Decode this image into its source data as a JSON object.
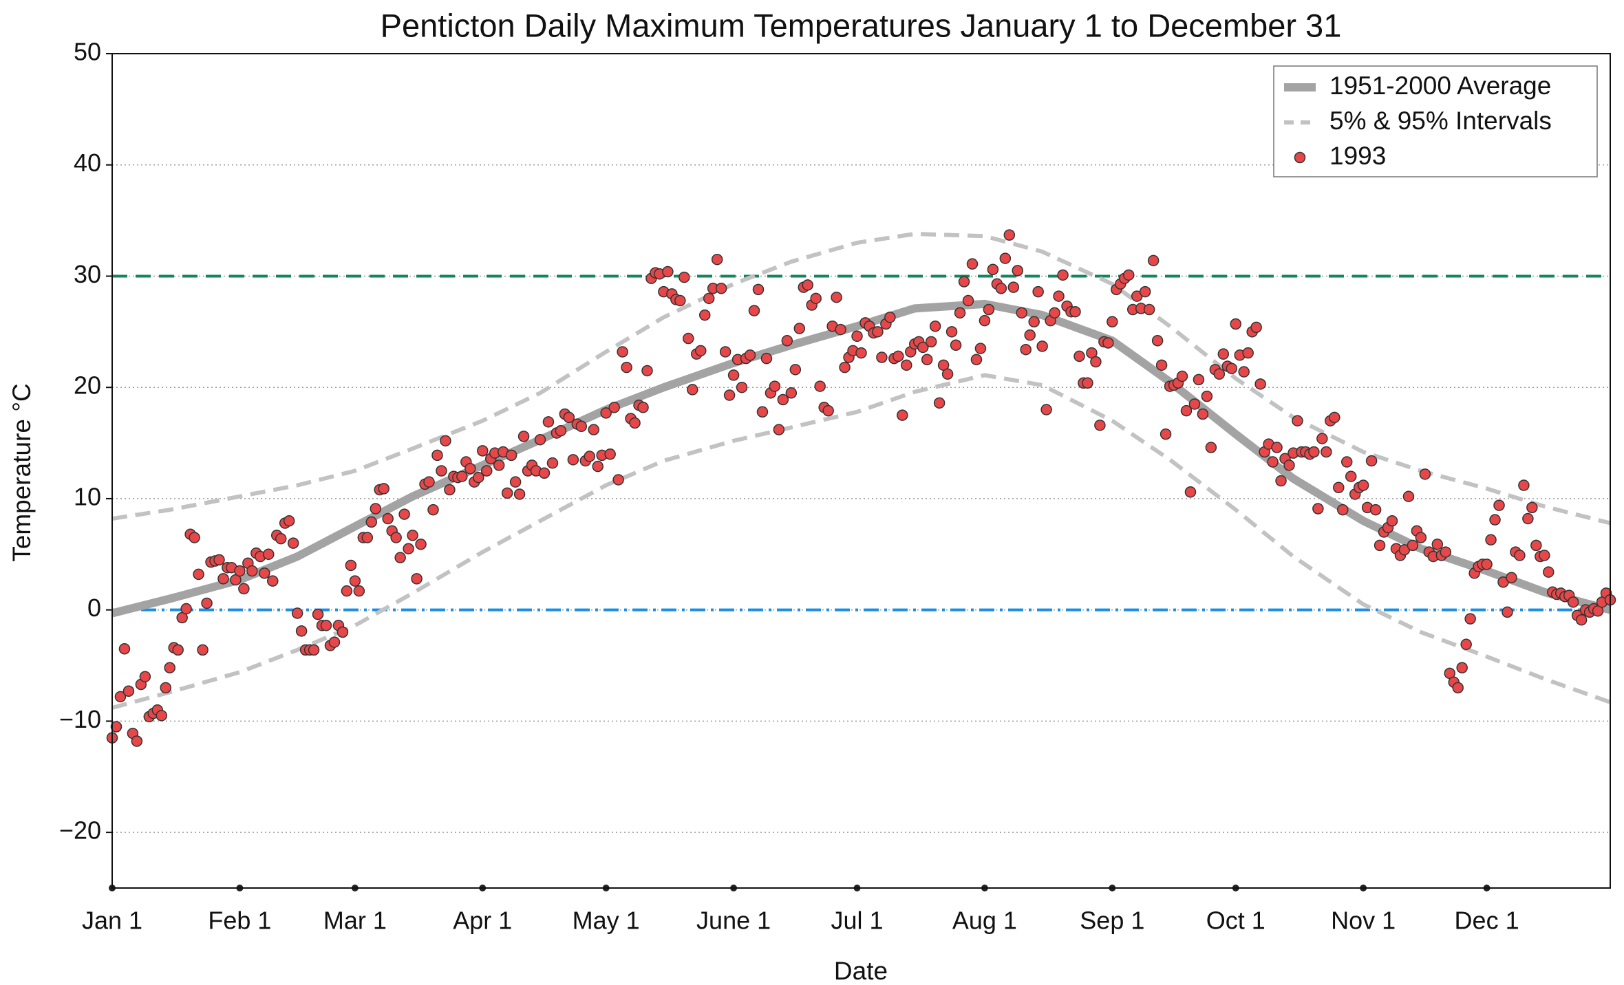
{
  "chart_data": {
    "type": "line",
    "title": "Penticton Daily Maximum Temperatures January 1 to December 31",
    "x_label": "Date",
    "y_label": "Temperature °C",
    "xlim": [
      1,
      365
    ],
    "ylim": [
      -25,
      50
    ],
    "xticks": [
      {
        "value": 1,
        "label": "Jan 1"
      },
      {
        "value": 32,
        "label": "Feb 1"
      },
      {
        "value": 60,
        "label": "Mar 1"
      },
      {
        "value": 91,
        "label": "Apr 1"
      },
      {
        "value": 121,
        "label": "May 1"
      },
      {
        "value": 152,
        "label": "June 1"
      },
      {
        "value": 182,
        "label": "Jul 1"
      },
      {
        "value": 213,
        "label": "Aug 1"
      },
      {
        "value": 244,
        "label": "Sep 1"
      },
      {
        "value": 274,
        "label": "Oct 1"
      },
      {
        "value": 305,
        "label": "Nov 1"
      },
      {
        "value": 335,
        "label": "Dec 1"
      }
    ],
    "yticks": [
      {
        "value": -20,
        "label": "−20"
      },
      {
        "value": -10,
        "label": "−10"
      },
      0,
      10,
      20,
      30,
      40,
      50
    ],
    "grid": true,
    "legend": "upper right",
    "hlines": [
      {
        "value": 30,
        "color": "#12885a",
        "style": "dashed"
      },
      {
        "value": 0,
        "color": "#1a8fe3",
        "style": "dashdot"
      }
    ],
    "series": [
      {
        "name": "1951-2000 Average",
        "type": "line",
        "color": "#a3a3a3",
        "style": "solid",
        "x": [
          1,
          15,
          32,
          46,
          60,
          74,
          91,
          105,
          121,
          135,
          152,
          166,
          182,
          196,
          213,
          227,
          244,
          258,
          274,
          288,
          305,
          319,
          335,
          349,
          365
        ],
        "values": [
          -0.3,
          1.0,
          2.7,
          4.8,
          7.5,
          10.2,
          13.0,
          15.3,
          18.0,
          20.0,
          22.2,
          23.8,
          25.5,
          27.1,
          27.5,
          26.5,
          24.2,
          20.5,
          15.8,
          11.8,
          8.0,
          5.5,
          3.5,
          1.6,
          0.0
        ]
      },
      {
        "name": "5% & 95% Intervals",
        "type": "line",
        "color": "#c2c2c2",
        "style": "dashed",
        "x": [
          1,
          15,
          32,
          46,
          60,
          74,
          91,
          105,
          121,
          135,
          152,
          166,
          182,
          196,
          213,
          227,
          244,
          258,
          274,
          288,
          305,
          319,
          335,
          349,
          365
        ],
        "values": [
          8.2,
          9.0,
          10.2,
          11.2,
          12.5,
          14.5,
          17.0,
          19.5,
          23.2,
          26.3,
          29.3,
          31.3,
          33.0,
          33.8,
          33.6,
          32.2,
          29.3,
          25.5,
          20.8,
          17.3,
          14.2,
          12.5,
          10.9,
          9.3,
          7.8
        ]
      },
      {
        "type": "line",
        "color": "#c2c2c2",
        "style": "dashed",
        "x": [
          1,
          15,
          32,
          46,
          60,
          74,
          91,
          105,
          121,
          135,
          152,
          166,
          182,
          196,
          213,
          227,
          244,
          258,
          274,
          288,
          305,
          319,
          335,
          349,
          365
        ],
        "values": [
          -8.8,
          -7.4,
          -5.6,
          -3.6,
          -1.4,
          1.5,
          5.2,
          8.0,
          11.2,
          13.4,
          15.2,
          16.4,
          17.8,
          19.6,
          21.1,
          20.2,
          17.0,
          13.5,
          9.0,
          4.8,
          0.5,
          -2.0,
          -4.2,
          -6.2,
          -8.3
        ]
      },
      {
        "name": "1993",
        "type": "scatter",
        "color": "#e8474a",
        "x": [
          1,
          2,
          3,
          4,
          5,
          6,
          7,
          8,
          9,
          10,
          11,
          12,
          13,
          14,
          15,
          16,
          17,
          18,
          19,
          20,
          21,
          22,
          23,
          24,
          25,
          26,
          27,
          28,
          29,
          30,
          31,
          32,
          33,
          34,
          35,
          36,
          37,
          38,
          39,
          40,
          41,
          42,
          43,
          44,
          45,
          46,
          47,
          48,
          49,
          50,
          51,
          52,
          53,
          54,
          55,
          56,
          57,
          58,
          59,
          60,
          61,
          62,
          63,
          64,
          65,
          66,
          67,
          68,
          69,
          70,
          71,
          72,
          73,
          74,
          75,
          76,
          77,
          78,
          79,
          80,
          81,
          82,
          83,
          84,
          85,
          86,
          87,
          88,
          89,
          90,
          91,
          92,
          93,
          94,
          95,
          96,
          97,
          98,
          99,
          100,
          101,
          102,
          103,
          104,
          105,
          106,
          107,
          108,
          109,
          110,
          111,
          112,
          113,
          114,
          115,
          116,
          117,
          118,
          119,
          120,
          121,
          122,
          123,
          124,
          125,
          126,
          127,
          128,
          129,
          130,
          131,
          132,
          133,
          134,
          135,
          136,
          137,
          138,
          139,
          140,
          141,
          142,
          143,
          144,
          145,
          146,
          147,
          148,
          149,
          150,
          151,
          152,
          153,
          154,
          155,
          156,
          157,
          158,
          159,
          160,
          161,
          162,
          163,
          164,
          165,
          166,
          167,
          168,
          169,
          170,
          171,
          172,
          173,
          174,
          175,
          176,
          177,
          178,
          179,
          180,
          181,
          182,
          183,
          184,
          185,
          186,
          187,
          188,
          189,
          190,
          191,
          192,
          193,
          194,
          195,
          196,
          197,
          198,
          199,
          200,
          201,
          202,
          203,
          204,
          205,
          206,
          207,
          208,
          209,
          210,
          211,
          212,
          213,
          214,
          215,
          216,
          217,
          218,
          219,
          220,
          221,
          222,
          223,
          224,
          225,
          226,
          227,
          228,
          229,
          230,
          231,
          232,
          233,
          234,
          235,
          236,
          237,
          238,
          239,
          240,
          241,
          242,
          243,
          244,
          245,
          246,
          247,
          248,
          249,
          250,
          251,
          252,
          253,
          254,
          255,
          256,
          257,
          258,
          259,
          260,
          261,
          262,
          263,
          264,
          265,
          266,
          267,
          268,
          269,
          270,
          271,
          272,
          273,
          274,
          275,
          276,
          277,
          278,
          279,
          280,
          281,
          282,
          283,
          284,
          285,
          286,
          287,
          288,
          289,
          290,
          291,
          292,
          293,
          294,
          295,
          296,
          297,
          298,
          299,
          300,
          301,
          302,
          303,
          304,
          305,
          306,
          307,
          308,
          309,
          310,
          311,
          312,
          313,
          314,
          315,
          316,
          317,
          318,
          319,
          320,
          321,
          322,
          323,
          324,
          325,
          326,
          327,
          328,
          329,
          330,
          331,
          332,
          333,
          334,
          335,
          336,
          337,
          338,
          339,
          340,
          341,
          342,
          343,
          344,
          345,
          346,
          347,
          348,
          349,
          350,
          351,
          352,
          353,
          354,
          355,
          356,
          357,
          358,
          359,
          360,
          361,
          362,
          363,
          364,
          365
        ],
        "values": [
          -11.5,
          -10.5,
          -7.8,
          -3.5,
          -7.3,
          -11.1,
          -11.8,
          -6.7,
          -6.0,
          -9.6,
          -9.3,
          -9.0,
          -9.5,
          -7.0,
          -5.2,
          -3.4,
          -3.6,
          -0.7,
          0.1,
          6.8,
          6.5,
          3.2,
          -3.6,
          0.6,
          4.3,
          4.4,
          4.5,
          2.8,
          3.8,
          3.8,
          2.7,
          3.5,
          1.9,
          4.2,
          3.5,
          5.1,
          4.8,
          3.3,
          5.0,
          2.6,
          6.7,
          6.4,
          7.8,
          8.0,
          6.0,
          -0.3,
          -1.9,
          -3.6,
          -3.6,
          -3.6,
          -0.4,
          -1.4,
          -1.4,
          -3.2,
          -2.9,
          -1.4,
          -2.0,
          1.7,
          4.0,
          2.6,
          1.7,
          6.5,
          6.5,
          7.9,
          9.1,
          10.8,
          10.9,
          8.2,
          7.1,
          6.5,
          4.7,
          8.6,
          5.5,
          6.7,
          2.8,
          5.9,
          11.3,
          11.5,
          9.0,
          13.9,
          12.5,
          15.2,
          10.8,
          12.0,
          11.9,
          12.0,
          13.3,
          12.7,
          11.5,
          11.9,
          14.3,
          12.5,
          13.6,
          14.1,
          13.0,
          14.2,
          10.5,
          13.9,
          11.5,
          10.4,
          15.6,
          12.5,
          13.0,
          12.5,
          15.3,
          12.3,
          16.9,
          13.2,
          15.9,
          16.1,
          17.6,
          17.3,
          13.5,
          16.7,
          16.5,
          13.4,
          13.8,
          16.2,
          12.9,
          13.9,
          17.7,
          14.0,
          18.2,
          11.7,
          23.2,
          21.8,
          17.2,
          16.8,
          18.4,
          18.2,
          21.5,
          29.8,
          30.3,
          30.2,
          28.6,
          30.4,
          28.4,
          27.9,
          27.8,
          29.9,
          24.4,
          19.8,
          23.0,
          23.3,
          26.5,
          28.0,
          28.9,
          31.5,
          28.9,
          23.2,
          19.3,
          21.1,
          22.5,
          20.0,
          22.6,
          22.9,
          26.9,
          28.8,
          17.8,
          22.6,
          19.5,
          20.1,
          16.2,
          18.9,
          24.2,
          19.5,
          21.6,
          25.3,
          29.0,
          29.2,
          27.4,
          28.0,
          20.1,
          18.2,
          17.9,
          25.5,
          28.1,
          25.2,
          21.8,
          22.7,
          23.3,
          24.6,
          23.1,
          25.8,
          25.5,
          24.9,
          25.0,
          22.7,
          25.7,
          26.3,
          22.6,
          22.8,
          17.5,
          22.0,
          23.2,
          23.9,
          24.1,
          23.6,
          22.5,
          24.1,
          25.5,
          18.6,
          22.0,
          21.2,
          25.0,
          23.8,
          26.7,
          29.5,
          27.8,
          31.1,
          22.5,
          23.5,
          26.0,
          27.0,
          30.6,
          29.3,
          28.9,
          31.6,
          33.7,
          29.0,
          30.5,
          26.7,
          23.4,
          24.7,
          25.9,
          28.6,
          23.7,
          18.0,
          26.0,
          26.7,
          28.2,
          30.1,
          27.3,
          26.8,
          26.8,
          22.8,
          20.4,
          20.4,
          23.1,
          22.3,
          16.6,
          24.1,
          24.0,
          25.9,
          28.8,
          29.3,
          29.8,
          30.1,
          27.0,
          28.2,
          27.1,
          28.6,
          27.0,
          31.4,
          24.2,
          22.0,
          15.8,
          20.1,
          20.2,
          20.4,
          21.0,
          17.9,
          10.6,
          18.5,
          20.7,
          17.6,
          19.2,
          14.6,
          21.6,
          21.2,
          23.0,
          21.9,
          21.7,
          25.7,
          22.9,
          21.4,
          23.1,
          25.0,
          25.4,
          20.3,
          14.2,
          14.9,
          13.3,
          14.6,
          11.6,
          13.6,
          13.0,
          14.1,
          17.0,
          14.2,
          14.2,
          14.0,
          14.2,
          9.1,
          15.4,
          14.2,
          17.0,
          17.3,
          11.0,
          9.0,
          13.3,
          12.0,
          10.4,
          11.0,
          11.2,
          9.2,
          13.4,
          9.0,
          5.8,
          7.0,
          7.4,
          8.0,
          5.5,
          4.9,
          5.4,
          10.2,
          5.8,
          7.1,
          6.5,
          12.2,
          5.2,
          4.8,
          5.9,
          4.9,
          5.2,
          -5.7,
          -6.5,
          -7.0,
          -5.2,
          -3.1,
          -0.8,
          3.3,
          3.9,
          4.1,
          4.1,
          6.3,
          8.1,
          9.4,
          2.5,
          -0.2,
          2.9,
          5.2,
          4.9,
          11.2,
          8.2,
          9.2,
          5.8,
          4.8,
          4.9,
          3.4,
          1.6,
          1.4,
          1.5,
          1.2,
          1.3,
          0.7,
          -0.5,
          -0.9,
          0.0,
          -0.2,
          0.1,
          -0.1,
          0.7,
          1.5,
          0.9
        ]
      }
    ]
  }
}
